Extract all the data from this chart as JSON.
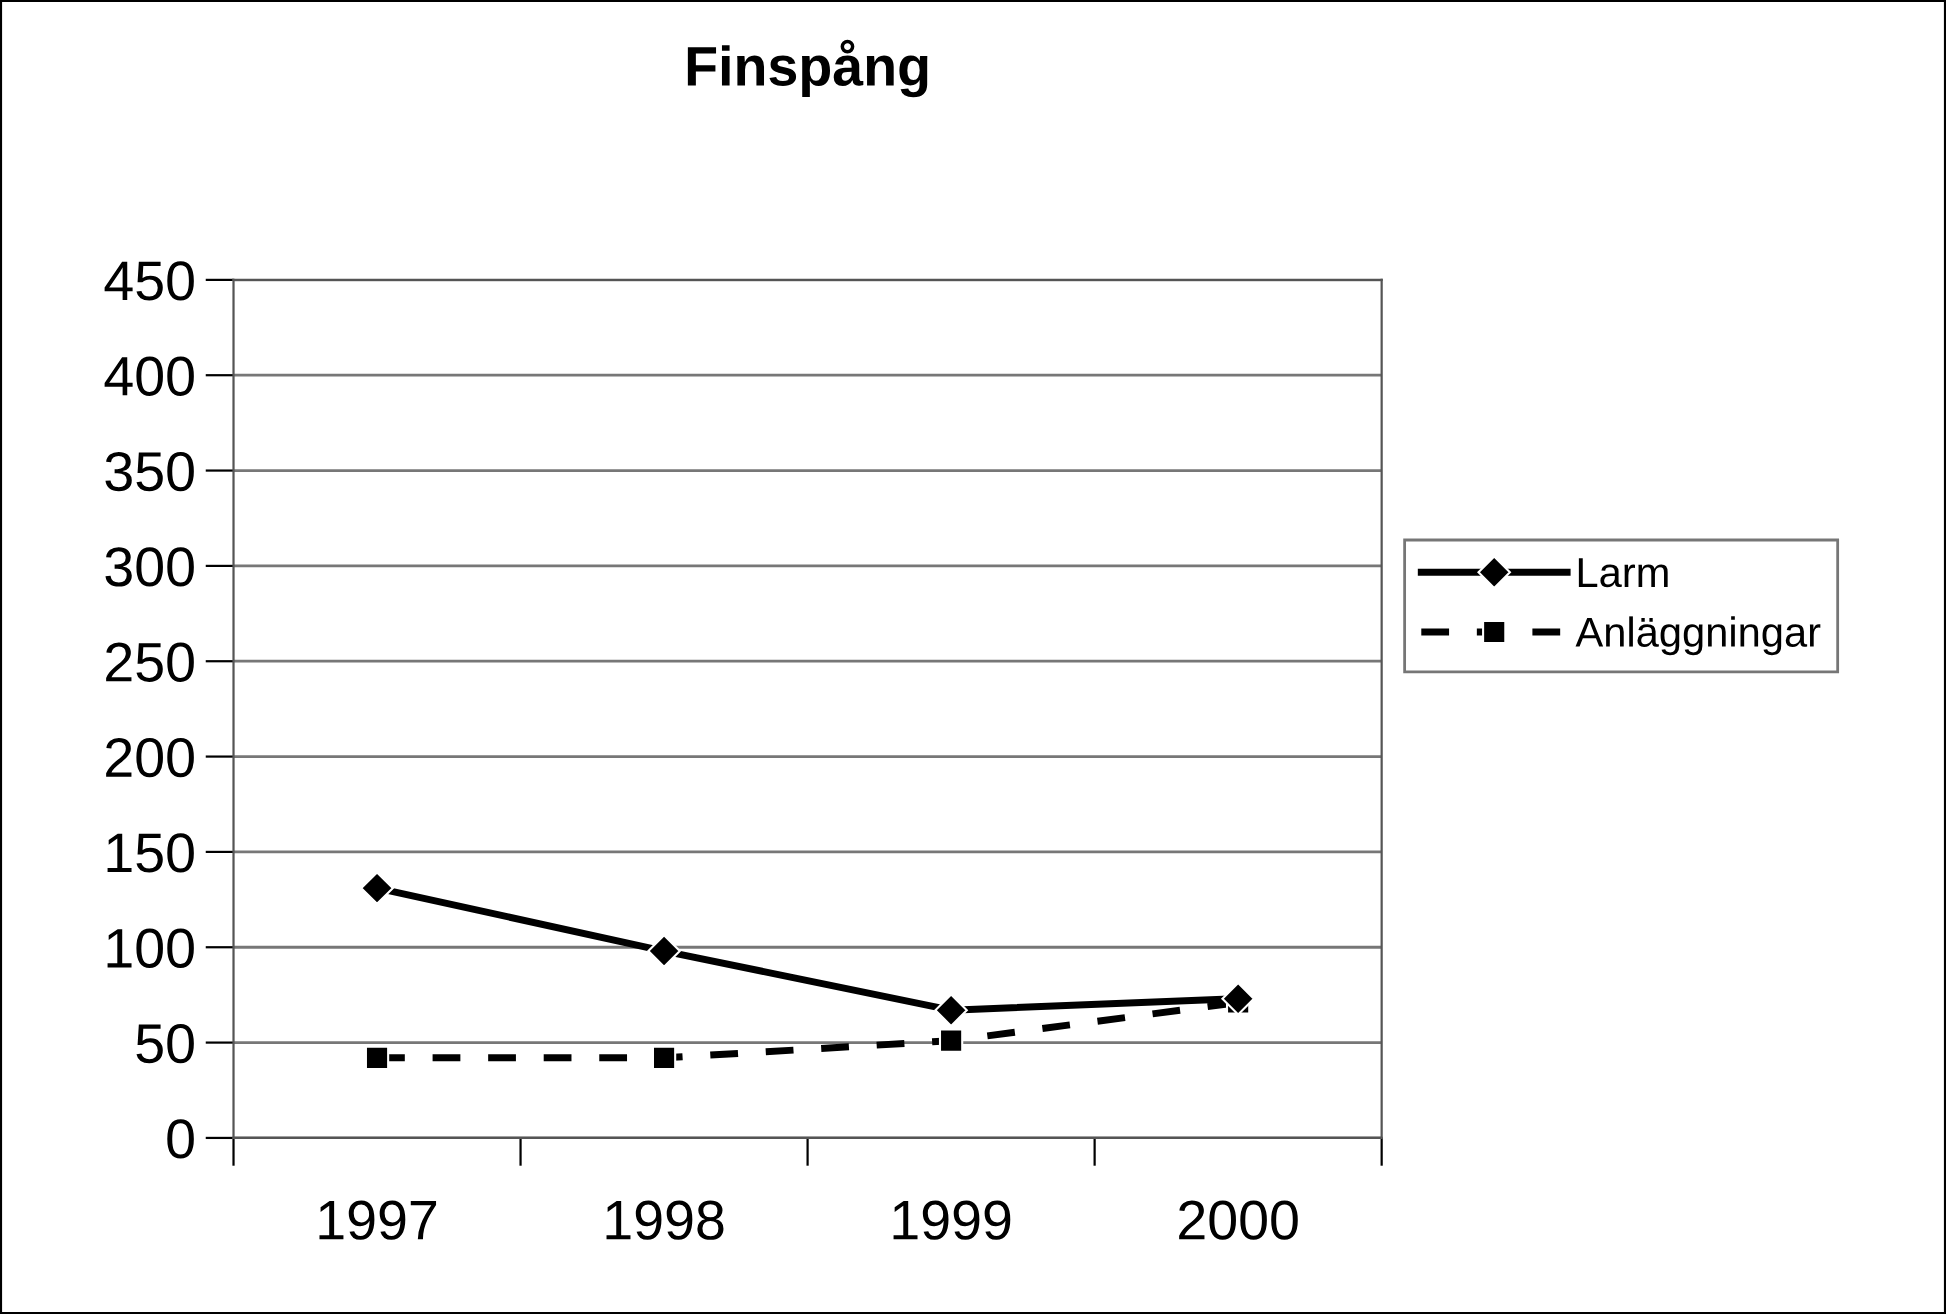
{
  "chart_data": {
    "type": "line",
    "title": "Finspång",
    "categories": [
      "1997",
      "1998",
      "1999",
      "2000"
    ],
    "series": [
      {
        "name": "Larm",
        "color": "#000000",
        "values": [
          131,
          98,
          67,
          73
        ],
        "marker": "diamond",
        "line_style": "solid"
      },
      {
        "name": "Anläggningar",
        "color": "#000000",
        "values": [
          42,
          42,
          51,
          71
        ],
        "marker": "square",
        "line_style": "dashed"
      }
    ],
    "ylim": [
      0,
      450
    ],
    "yticks": [
      0,
      50,
      100,
      150,
      200,
      250,
      300,
      350,
      400,
      450
    ],
    "grid": "y",
    "legend": "right"
  }
}
